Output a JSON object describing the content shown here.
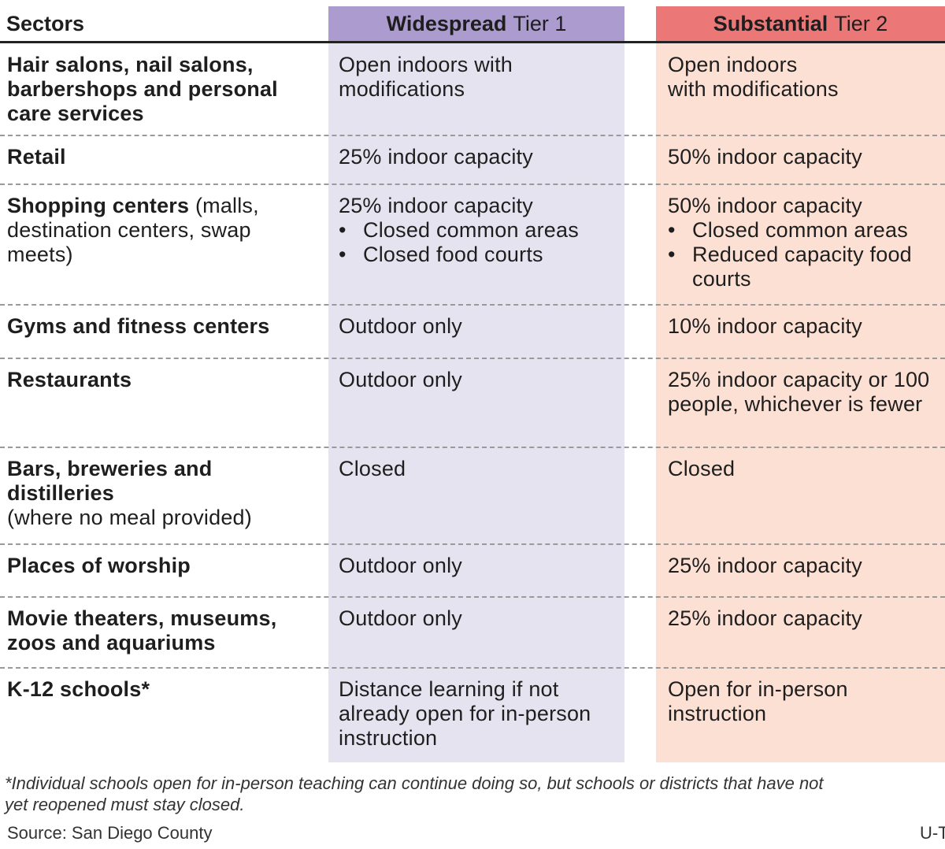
{
  "header": {
    "sectors": "Sectors",
    "tier1_strong": "Widespread",
    "tier1_rest": "Tier 1",
    "tier2_strong": "Substantial",
    "tier2_rest": "Tier 2"
  },
  "colors": {
    "tier1_header": "#ab9bcf",
    "tier1_fill": "#e6e3f0",
    "tier2_header": "#ec7777",
    "tier2_fill": "#fce0d4"
  },
  "rows": [
    {
      "sector": "Hair salons, nail salons, barbershops and personal care services",
      "tier1": "Open indoors with modifications",
      "tier2": "Open indoors\nwith modifications"
    },
    {
      "sector": "Retail",
      "tier1": "25% indoor capacity",
      "tier2": "50% indoor capacity"
    },
    {
      "sector": "Shopping centers",
      "sector_note": "(malls, destination centers, swap meets)",
      "tier1": "25% indoor capacity",
      "tier1_bullets": [
        "Closed common areas",
        "Closed food courts"
      ],
      "tier2": "50% indoor capacity",
      "tier2_bullets": [
        "Closed common areas",
        "Reduced capacity food courts"
      ]
    },
    {
      "sector": "Gyms and fitness centers",
      "tier1": "Outdoor only",
      "tier2": "10% indoor capacity"
    },
    {
      "sector": "Restaurants",
      "tier1": "Outdoor only",
      "tier2": "25% indoor capacity or 100 people, whichever is fewer"
    },
    {
      "sector": "Bars, breweries and distilleries",
      "sector_note": "(where no meal provided)",
      "tier1": "Closed",
      "tier2": "Closed"
    },
    {
      "sector": "Places of worship",
      "tier1": "Outdoor only",
      "tier2": "25% indoor capacity"
    },
    {
      "sector": "Movie theaters, museums, zoos and aquariums",
      "tier1": "Outdoor only",
      "tier2": "25% indoor capacity"
    },
    {
      "sector": "K-12 schools*",
      "tier1": "Distance learning if not already open for in-person instruction",
      "tier2": "Open for in-person\ninstruction"
    }
  ],
  "footnote": "*Individual schools open for in-person teaching can continue doing so, but schools or districts that have not\nyet reopened must stay closed.",
  "source": "Source: San Diego County",
  "credit": "U-T"
}
